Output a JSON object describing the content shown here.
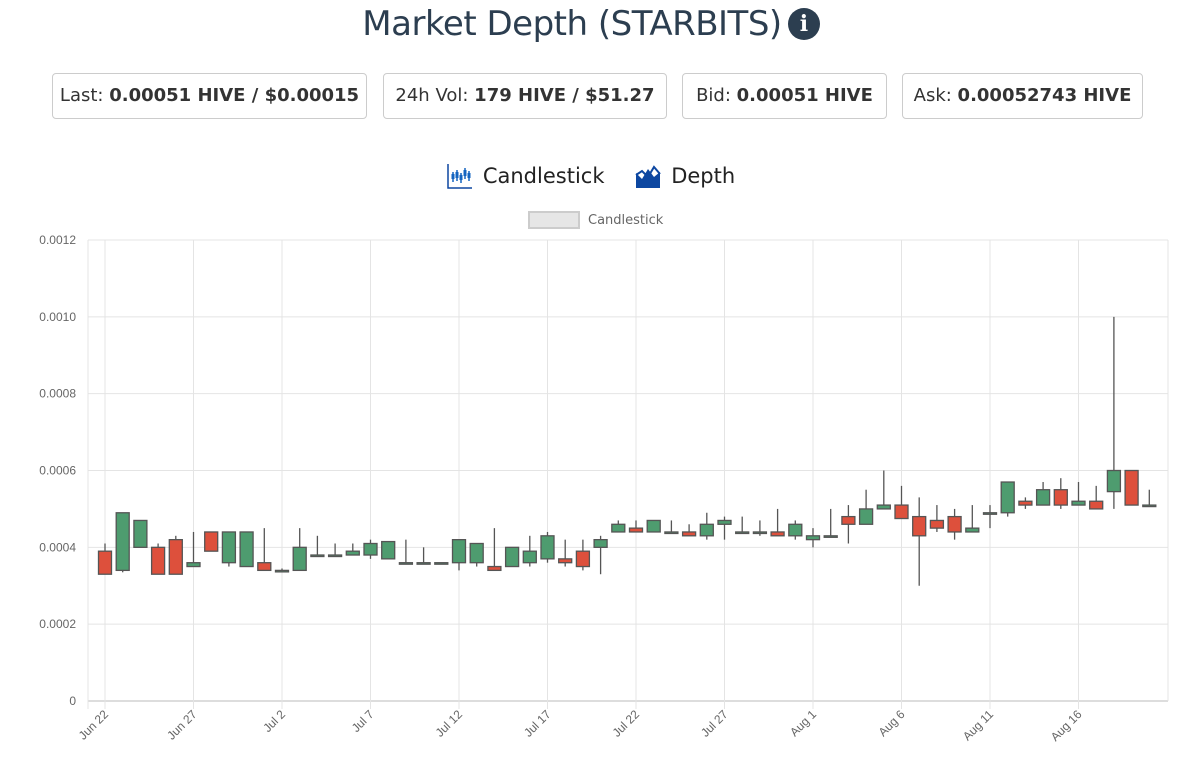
{
  "header": {
    "title": "Market Depth (STARBITS)",
    "info_icon": "i"
  },
  "stats": [
    {
      "label": "Last:",
      "value": "0.00051 HIVE / $0.00015"
    },
    {
      "label": "24h Vol:",
      "value": "179 HIVE / $51.27"
    },
    {
      "label": "Bid:",
      "value": "0.00051 HIVE"
    },
    {
      "label": "Ask:",
      "value": "0.00052743 HIVE"
    }
  ],
  "tabs": [
    {
      "label": "Candlestick",
      "icon": "candlestick-icon"
    },
    {
      "label": "Depth",
      "icon": "depth-icon"
    }
  ],
  "colors": {
    "up": "#4e9c6f",
    "down": "#dd503c",
    "accent": "#0d47a1"
  },
  "chart_data": {
    "type": "candlestick",
    "legend": [
      "Candlestick"
    ],
    "legend_position": "top",
    "ylim": [
      0,
      0.0012
    ],
    "yticks": [
      "0",
      "0.0002",
      "0.0004",
      "0.0006",
      "0.0008",
      "0.0010",
      "0.0012"
    ],
    "xticks": [
      "Jun 22",
      "Jun 27",
      "Jul 2",
      "Jul 7",
      "Jul 12",
      "Jul 17",
      "Jul 22",
      "Jul 27",
      "Aug 1",
      "Aug 6",
      "Aug 11",
      "Aug 16"
    ],
    "start_date": "Jun 22",
    "ohlc": [
      [
        0.00039,
        0.00041,
        0.00033,
        0.00033
      ],
      [
        0.00034,
        0.00049,
        0.000335,
        0.00049
      ],
      [
        0.0004,
        0.00047,
        0.0004,
        0.00047
      ],
      [
        0.0004,
        0.00041,
        0.00033,
        0.00033
      ],
      [
        0.00042,
        0.00043,
        0.00033,
        0.00033
      ],
      [
        0.00035,
        0.00044,
        0.00035,
        0.00036
      ],
      [
        0.00044,
        0.00044,
        0.00039,
        0.00039
      ],
      [
        0.00036,
        0.00044,
        0.00035,
        0.00044
      ],
      [
        0.00035,
        0.00044,
        0.00035,
        0.00044
      ],
      [
        0.00036,
        0.00045,
        0.00034,
        0.00034
      ],
      [
        0.00034,
        0.000345,
        0.000335,
        0.00034
      ],
      [
        0.00034,
        0.00045,
        0.00034,
        0.0004
      ],
      [
        0.00038,
        0.00043,
        0.00038,
        0.00038
      ],
      [
        0.00038,
        0.00041,
        0.00038,
        0.00038
      ],
      [
        0.00038,
        0.00041,
        0.00038,
        0.00039
      ],
      [
        0.00038,
        0.00042,
        0.00037,
        0.00041
      ],
      [
        0.00037,
        0.000415,
        0.00037,
        0.000415
      ],
      [
        0.00036,
        0.00042,
        0.00036,
        0.00036
      ],
      [
        0.00036,
        0.0004,
        0.00036,
        0.00036
      ],
      [
        0.00036,
        0.00036,
        0.00036,
        0.00036
      ],
      [
        0.00036,
        0.00042,
        0.00034,
        0.00042
      ],
      [
        0.00036,
        0.00041,
        0.00035,
        0.00041
      ],
      [
        0.00035,
        0.00045,
        0.00034,
        0.00034
      ],
      [
        0.00035,
        0.0004,
        0.00035,
        0.0004
      ],
      [
        0.00036,
        0.00043,
        0.00035,
        0.00039
      ],
      [
        0.00037,
        0.00044,
        0.00036,
        0.00043
      ],
      [
        0.00037,
        0.00042,
        0.00035,
        0.00036
      ],
      [
        0.00039,
        0.00042,
        0.00034,
        0.00035
      ],
      [
        0.0004,
        0.00043,
        0.00033,
        0.00042
      ],
      [
        0.00044,
        0.00047,
        0.00044,
        0.00046
      ],
      [
        0.00045,
        0.00047,
        0.00044,
        0.00044
      ],
      [
        0.00044,
        0.00047,
        0.00044,
        0.00047
      ],
      [
        0.00044,
        0.00047,
        0.00044,
        0.00044
      ],
      [
        0.00044,
        0.00046,
        0.00043,
        0.00043
      ],
      [
        0.00043,
        0.00049,
        0.00042,
        0.00046
      ],
      [
        0.00046,
        0.00048,
        0.00042,
        0.00047
      ],
      [
        0.00044,
        0.00048,
        0.00044,
        0.00044
      ],
      [
        0.00044,
        0.00047,
        0.00043,
        0.00044
      ],
      [
        0.00044,
        0.0005,
        0.00043,
        0.00043
      ],
      [
        0.00043,
        0.00047,
        0.00042,
        0.00046
      ],
      [
        0.00042,
        0.00045,
        0.0004,
        0.00043
      ],
      [
        0.00043,
        0.0005,
        0.00043,
        0.00043
      ],
      [
        0.00048,
        0.00051,
        0.00041,
        0.00046
      ],
      [
        0.00046,
        0.00055,
        0.00046,
        0.0005
      ],
      [
        0.0005,
        0.0006,
        0.0005,
        0.00051
      ],
      [
        0.00051,
        0.00056,
        0.000475,
        0.000475
      ],
      [
        0.00048,
        0.00053,
        0.0003,
        0.00043
      ],
      [
        0.00047,
        0.00051,
        0.00044,
        0.00045
      ],
      [
        0.00048,
        0.0005,
        0.00042,
        0.00044
      ],
      [
        0.00044,
        0.00051,
        0.00044,
        0.00045
      ],
      [
        0.00049,
        0.00051,
        0.00045,
        0.00049
      ],
      [
        0.00049,
        0.00057,
        0.00048,
        0.00057
      ],
      [
        0.00052,
        0.00053,
        0.0005,
        0.00051
      ],
      [
        0.00051,
        0.00057,
        0.00051,
        0.00055
      ],
      [
        0.00055,
        0.00058,
        0.0005,
        0.00051
      ],
      [
        0.00051,
        0.00057,
        0.00051,
        0.00052
      ],
      [
        0.00052,
        0.00056,
        0.0005,
        0.0005
      ],
      [
        0.000545,
        0.001,
        0.0005,
        0.0006
      ],
      [
        0.0006,
        0.0006,
        0.00051,
        0.00051
      ],
      [
        0.00051,
        0.00055,
        0.00051,
        0.00051
      ]
    ]
  }
}
